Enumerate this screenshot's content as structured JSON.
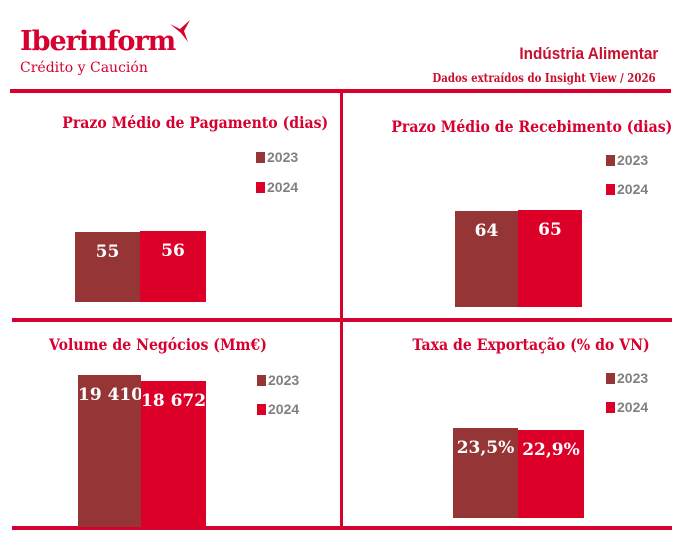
{
  "header": {
    "logo": "Iberinform",
    "logo_sub": "Crédito y Caución",
    "title": "Indústria Alimentar",
    "subtitle": "Dados extraídos do Insight View / 2026"
  },
  "colors": {
    "accent": "#d7002f",
    "y2023": "#963535",
    "y2024": "#dc0028",
    "legend_text": "#808080"
  },
  "chart_data": [
    {
      "type": "bar",
      "title": "Prazo Médio de Pagamento (dias)",
      "categories": [
        "2023",
        "2024"
      ],
      "values": [
        55,
        56
      ],
      "labels": [
        "55",
        "56"
      ],
      "legend": [
        "2023",
        "2024"
      ]
    },
    {
      "type": "bar",
      "title": "Prazo Médio de Recebimento (dias)",
      "categories": [
        "2023",
        "2024"
      ],
      "values": [
        64,
        65
      ],
      "labels": [
        "64",
        "65"
      ],
      "legend": [
        "2023",
        "2024"
      ]
    },
    {
      "type": "bar",
      "title": "Volume de Negócios (Mm€)",
      "categories": [
        "2023",
        "2024"
      ],
      "values": [
        19410,
        18672
      ],
      "labels": [
        "19 410",
        "18 672"
      ],
      "legend": [
        "2023",
        "2024"
      ]
    },
    {
      "type": "bar",
      "title": "Taxa de Exportação (% do VN)",
      "categories": [
        "2023",
        "2024"
      ],
      "values": [
        23.5,
        22.9
      ],
      "labels": [
        "23,5%",
        "22,9%"
      ],
      "legend": [
        "2023",
        "2024"
      ]
    }
  ]
}
